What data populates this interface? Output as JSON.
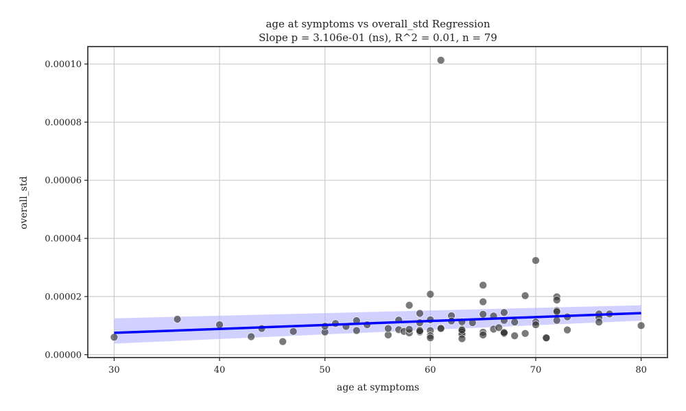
{
  "chart_data": {
    "type": "scatter",
    "title": "age at symptoms vs overall_std Regression",
    "subtitle": "Slope p = 3.106e-01 (ns), R^2 = 0.01, n = 79",
    "xlabel": "age at symptoms",
    "ylabel": "overall_std",
    "xlim": [
      27.5,
      82.5
    ],
    "ylim": [
      -1e-06,
      0.000106
    ],
    "grid": true,
    "x_ticks": [
      30,
      40,
      50,
      60,
      70,
      80
    ],
    "x_tick_labels": [
      "30",
      "40",
      "50",
      "60",
      "70",
      "80"
    ],
    "y_ticks": [
      0,
      2e-05,
      4e-05,
      6e-05,
      8e-05,
      0.0001
    ],
    "y_tick_labels": [
      "0.00000",
      "0.00002",
      "0.00004",
      "0.00006",
      "0.00008",
      "0.00010"
    ],
    "colors": {
      "points": "#333333",
      "regression_line": "#0000ff",
      "confidence_band": "#b3b3ff"
    },
    "regression": {
      "x": [
        30,
        80
      ],
      "y": [
        7.5e-06,
        1.43e-05
      ],
      "ci_lower": [
        3.8e-06,
        1.17e-05
      ],
      "ci_upper": [
        1.25e-05,
        1.7e-05
      ]
    },
    "points": [
      [
        30,
        6e-06
      ],
      [
        36,
        1.22e-05
      ],
      [
        40,
        1.03e-05
      ],
      [
        43,
        6.2e-06
      ],
      [
        44,
        9e-06
      ],
      [
        46,
        4.5e-06
      ],
      [
        47,
        8e-06
      ],
      [
        50,
        7.8e-06
      ],
      [
        50,
        9.8e-06
      ],
      [
        51,
        1.07e-05
      ],
      [
        52,
        9.7e-06
      ],
      [
        53,
        1.17e-05
      ],
      [
        53,
        8.3e-06
      ],
      [
        54,
        1.03e-05
      ],
      [
        56,
        6.8e-06
      ],
      [
        56,
        9e-06
      ],
      [
        57,
        1.19e-05
      ],
      [
        57,
        8.6e-06
      ],
      [
        57.5,
        8e-06
      ],
      [
        58,
        1.7e-05
      ],
      [
        58,
        7.5e-06
      ],
      [
        58,
        8.7e-06
      ],
      [
        59,
        1.42e-05
      ],
      [
        59,
        1.1e-05
      ],
      [
        59,
        8.5e-06
      ],
      [
        59,
        7.8e-06
      ],
      [
        60,
        2.08e-05
      ],
      [
        60,
        1.2e-05
      ],
      [
        60,
        8.3e-06
      ],
      [
        60,
        6.5e-06
      ],
      [
        60,
        5.8e-06
      ],
      [
        61,
        0.0001013
      ],
      [
        61,
        9.2e-06
      ],
      [
        61,
        9e-06
      ],
      [
        62,
        1.34e-05
      ],
      [
        62,
        1.16e-05
      ],
      [
        63,
        1.13e-05
      ],
      [
        63,
        8.8e-06
      ],
      [
        63,
        8.2e-06
      ],
      [
        63,
        7.8e-06
      ],
      [
        63,
        7e-06
      ],
      [
        63,
        5.5e-06
      ],
      [
        64,
        1.1e-05
      ],
      [
        65,
        2.39e-05
      ],
      [
        65,
        1.82e-05
      ],
      [
        65,
        1.39e-05
      ],
      [
        65,
        7.7e-06
      ],
      [
        65,
        6.8e-06
      ],
      [
        66,
        1.33e-05
      ],
      [
        66,
        8.8e-06
      ],
      [
        66.5,
        9.3e-06
      ],
      [
        67,
        1.45e-05
      ],
      [
        67,
        1.18e-05
      ],
      [
        67,
        7.5e-06
      ],
      [
        67,
        7.3e-06
      ],
      [
        68,
        1.12e-05
      ],
      [
        68,
        6.5e-06
      ],
      [
        69,
        2.03e-05
      ],
      [
        69,
        7.3e-06
      ],
      [
        70,
        3.24e-05
      ],
      [
        70,
        1.12e-05
      ],
      [
        70,
        1.03e-05
      ],
      [
        71,
        5.7e-06
      ],
      [
        71,
        5.8e-06
      ],
      [
        72,
        1.99e-05
      ],
      [
        72,
        1.88e-05
      ],
      [
        72,
        1.52e-05
      ],
      [
        72,
        1.48e-05
      ],
      [
        72,
        1.18e-05
      ],
      [
        73,
        1.3e-05
      ],
      [
        73,
        8.5e-06
      ],
      [
        76,
        1.4e-05
      ],
      [
        76,
        1.28e-05
      ],
      [
        76,
        1.12e-05
      ],
      [
        77,
        1.4e-05
      ],
      [
        80,
        1e-05
      ],
      [
        63,
        8.5e-06
      ],
      [
        59,
        8.2e-06
      ],
      [
        67,
        7.6e-06
      ]
    ]
  }
}
